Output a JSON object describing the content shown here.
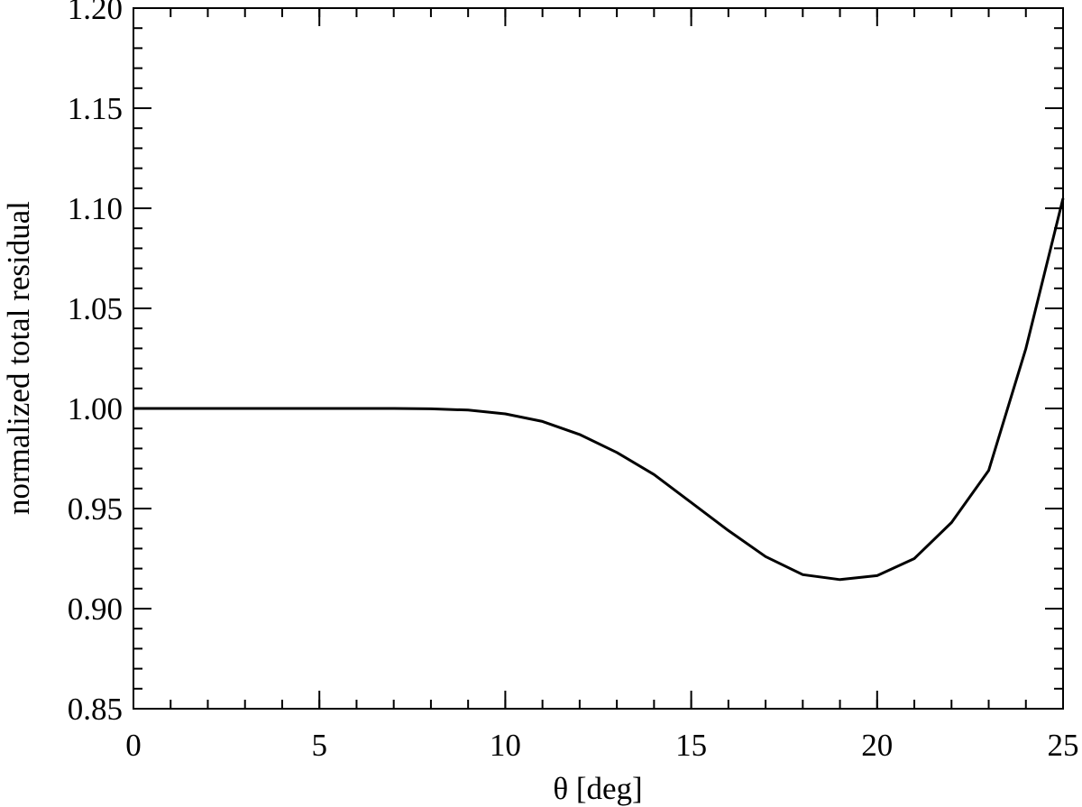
{
  "chart_data": {
    "type": "line",
    "title": "",
    "xlabel": "θ [deg]",
    "ylabel": "normalized total residual",
    "xlim": [
      0,
      25
    ],
    "ylim": [
      0.85,
      1.2
    ],
    "x_ticks": [
      0,
      5,
      10,
      15,
      20,
      25
    ],
    "x_tick_labels": [
      "0",
      "5",
      "10",
      "15",
      "20",
      "25"
    ],
    "x_minor_step": 1,
    "y_ticks": [
      0.85,
      0.9,
      0.95,
      1.0,
      1.05,
      1.1,
      1.15,
      1.2
    ],
    "y_tick_labels": [
      "0.85",
      "0.90",
      "0.95",
      "1.00",
      "1.05",
      "1.10",
      "1.15",
      "1.20"
    ],
    "y_minor_step": 0.01,
    "grid": false,
    "series": [
      {
        "x": [
          0,
          1,
          2,
          3,
          4,
          5,
          6,
          7,
          8,
          9,
          10,
          11,
          12,
          13,
          14,
          15,
          16,
          17,
          18,
          19,
          20,
          21,
          22,
          23,
          24,
          25
        ],
        "y": [
          1.0,
          1.0,
          1.0,
          1.0,
          1.0,
          1.0,
          1.0,
          1.0,
          0.9998,
          0.9992,
          0.9973,
          0.9935,
          0.987,
          0.978,
          0.967,
          0.953,
          0.939,
          0.926,
          0.917,
          0.9145,
          0.9165,
          0.925,
          0.943,
          0.969,
          1.03,
          1.105
        ]
      }
    ]
  }
}
